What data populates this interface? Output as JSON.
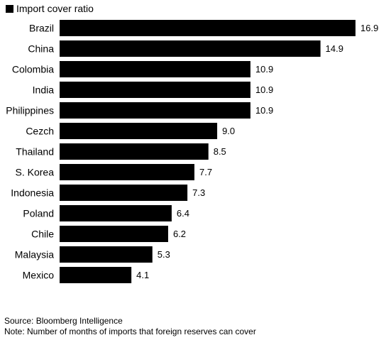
{
  "legend": {
    "label": "Import cover ratio",
    "swatch_color": "#000000"
  },
  "chart_data": {
    "type": "bar",
    "orientation": "horizontal",
    "title": "",
    "xlabel": "",
    "ylabel": "",
    "categories": [
      "Brazil",
      "China",
      "Colombia",
      "India",
      "Philippines",
      "Cezch",
      "Thailand",
      "S. Korea",
      "Indonesia",
      "Poland",
      "Chile",
      "Malaysia",
      "Mexico"
    ],
    "series": [
      {
        "name": "Import cover ratio",
        "values": [
          16.9,
          14.9,
          10.9,
          10.9,
          10.9,
          9.0,
          8.5,
          7.7,
          7.3,
          6.4,
          6.2,
          5.3,
          4.1
        ],
        "value_labels": [
          "16.9",
          "14.9",
          "10.9",
          "10.9",
          "10.9",
          "9.0",
          "8.5",
          "7.7",
          "7.3",
          "6.4",
          "6.2",
          "5.3",
          "4.1"
        ],
        "color": "#000000"
      }
    ],
    "xlim": [
      0,
      16.9
    ],
    "grid": false,
    "legend_position": "top-left"
  },
  "footer": {
    "source": "Source: Bloomberg Intelligence",
    "note": "Note: Number of months of imports that foreign reserves can cover"
  }
}
